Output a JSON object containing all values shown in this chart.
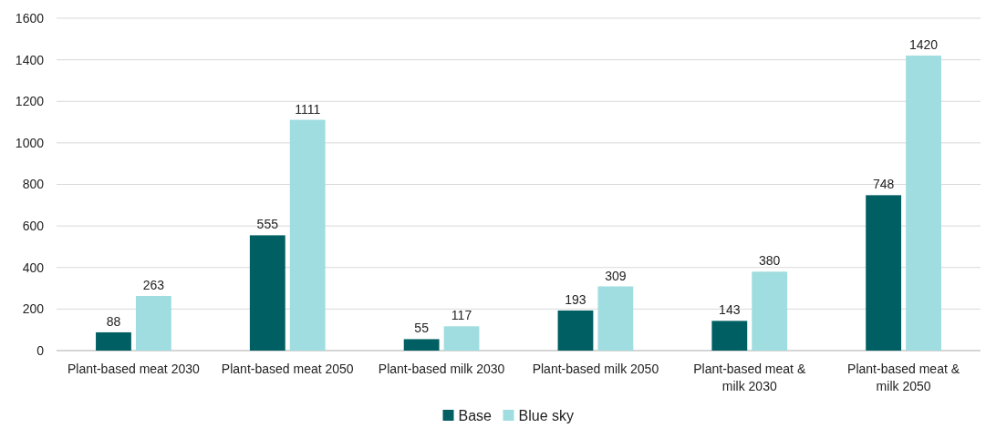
{
  "chart_data": {
    "type": "bar",
    "categories": [
      "Plant-based meat 2030",
      "Plant-based meat 2050",
      "Plant-based milk 2030",
      "Plant-based milk 2050",
      "Plant-based meat & milk 2030",
      "Plant-based meat & milk 2050"
    ],
    "series": [
      {
        "name": "Base",
        "color": "#005f63",
        "values": [
          88,
          555,
          55,
          193,
          143,
          748
        ]
      },
      {
        "name": "Blue sky",
        "color": "#a0dde0",
        "values": [
          263,
          1111,
          117,
          309,
          380,
          1420
        ]
      }
    ],
    "ylim": [
      0,
      1600
    ],
    "yticks": [
      0,
      200,
      400,
      600,
      800,
      1000,
      1200,
      1400,
      1600
    ],
    "grid": "y",
    "legend": "bottom",
    "data_labels": true
  }
}
